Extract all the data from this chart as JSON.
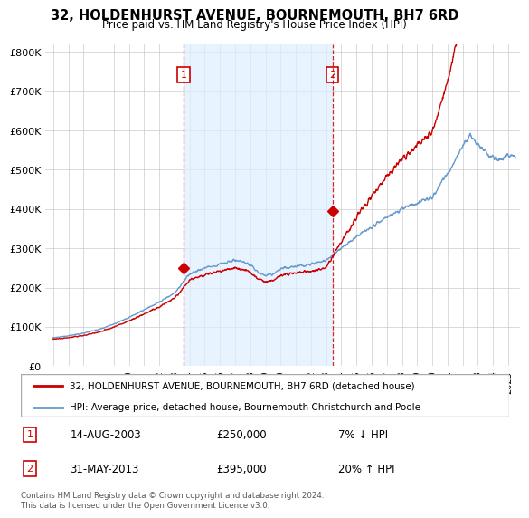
{
  "title": "32, HOLDENHURST AVENUE, BOURNEMOUTH, BH7 6RD",
  "subtitle": "Price paid vs. HM Land Registry's House Price Index (HPI)",
  "legend_line1": "32, HOLDENHURST AVENUE, BOURNEMOUTH, BH7 6RD (detached house)",
  "legend_line2": "HPI: Average price, detached house, Bournemouth Christchurch and Poole",
  "annotation1_label": "1",
  "annotation1_date": "14-AUG-2003",
  "annotation1_price": "£250,000",
  "annotation1_hpi": "7% ↓ HPI",
  "annotation2_label": "2",
  "annotation2_date": "31-MAY-2013",
  "annotation2_price": "£395,000",
  "annotation2_hpi": "20% ↑ HPI",
  "footer": "Contains HM Land Registry data © Crown copyright and database right 2024.\nThis data is licensed under the Open Government Licence v3.0.",
  "hpi_color": "#6699cc",
  "price_color": "#cc0000",
  "shade_color": "#ddeeff",
  "annotation_color": "#cc0000",
  "ylim": [
    0,
    820000
  ],
  "yticks": [
    0,
    100000,
    200000,
    300000,
    400000,
    500000,
    600000,
    700000,
    800000
  ],
  "ytick_labels": [
    "£0",
    "£100K",
    "£200K",
    "£300K",
    "£400K",
    "£500K",
    "£600K",
    "£700K",
    "£800K"
  ],
  "sale1_x": 2003.62,
  "sale1_y": 250000,
  "sale2_x": 2013.41,
  "sale2_y": 395000,
  "xmin": 1994.5,
  "xmax": 2025.8
}
